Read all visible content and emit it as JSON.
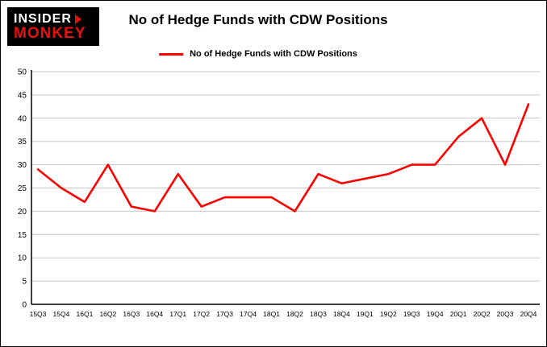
{
  "logo": {
    "line1": "INSIDER",
    "line2": "MONKEY"
  },
  "title": "No of Hedge Funds with CDW Positions",
  "legend": {
    "label": "No of Hedge Funds with CDW Positions",
    "color": "#ff0000"
  },
  "colors": {
    "line": "#ff0000",
    "grid": "#c8c8c8",
    "axis": "#000000",
    "background": "#ffffff",
    "logo_red": "#e8100c"
  },
  "chart_data": {
    "type": "line",
    "title": "No of Hedge Funds with CDW Positions",
    "categories": [
      "15Q3",
      "15Q4",
      "16Q1",
      "16Q2",
      "16Q3",
      "16Q4",
      "17Q1",
      "17Q2",
      "17Q3",
      "17Q4",
      "18Q1",
      "18Q2",
      "18Q3",
      "18Q4",
      "19Q1",
      "19Q2",
      "19Q3",
      "19Q4",
      "20Q1",
      "20Q2",
      "20Q3",
      "20Q4"
    ],
    "series": [
      {
        "name": "No of Hedge Funds with CDW Positions",
        "values": [
          29,
          25,
          22,
          30,
          21,
          20,
          28,
          21,
          23,
          23,
          23,
          20,
          28,
          26,
          27,
          28,
          30,
          30,
          36,
          40,
          30,
          43
        ]
      }
    ],
    "ylim": [
      0,
      50
    ],
    "ytick_step": 5,
    "yticks": [
      0,
      5,
      10,
      15,
      20,
      25,
      30,
      35,
      40,
      45,
      50
    ],
    "xlabel": "",
    "ylabel": "",
    "grid": "horizontal",
    "legend_position": "top"
  }
}
